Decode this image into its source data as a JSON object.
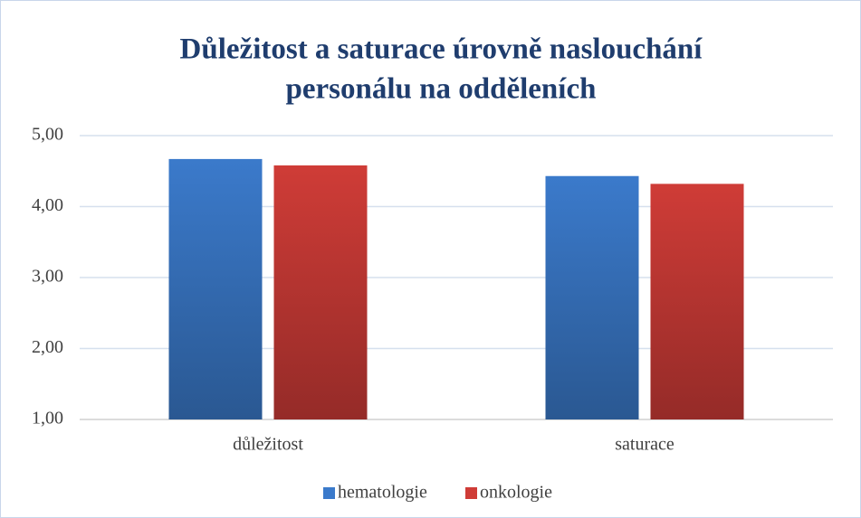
{
  "chart_data": {
    "type": "bar",
    "title": [
      "Důležitost a saturace úrovně naslouchání",
      "personálu na odděleních"
    ],
    "categories": [
      "důležitost",
      "saturace"
    ],
    "series": [
      {
        "name": "hematologie",
        "color": "#3b7acb",
        "values": [
          4.67,
          4.43
        ]
      },
      {
        "name": "onkologie",
        "color": "#cf3c37",
        "values": [
          4.58,
          4.32
        ]
      }
    ],
    "ylim": [
      1,
      5
    ],
    "yticks": [
      {
        "value": 1,
        "label": "1,00"
      },
      {
        "value": 2,
        "label": "2,00"
      },
      {
        "value": 3,
        "label": "3,00"
      },
      {
        "value": 4,
        "label": "4,00"
      },
      {
        "value": 5,
        "label": "5,00"
      }
    ],
    "grid": true,
    "legend": "bottom"
  }
}
